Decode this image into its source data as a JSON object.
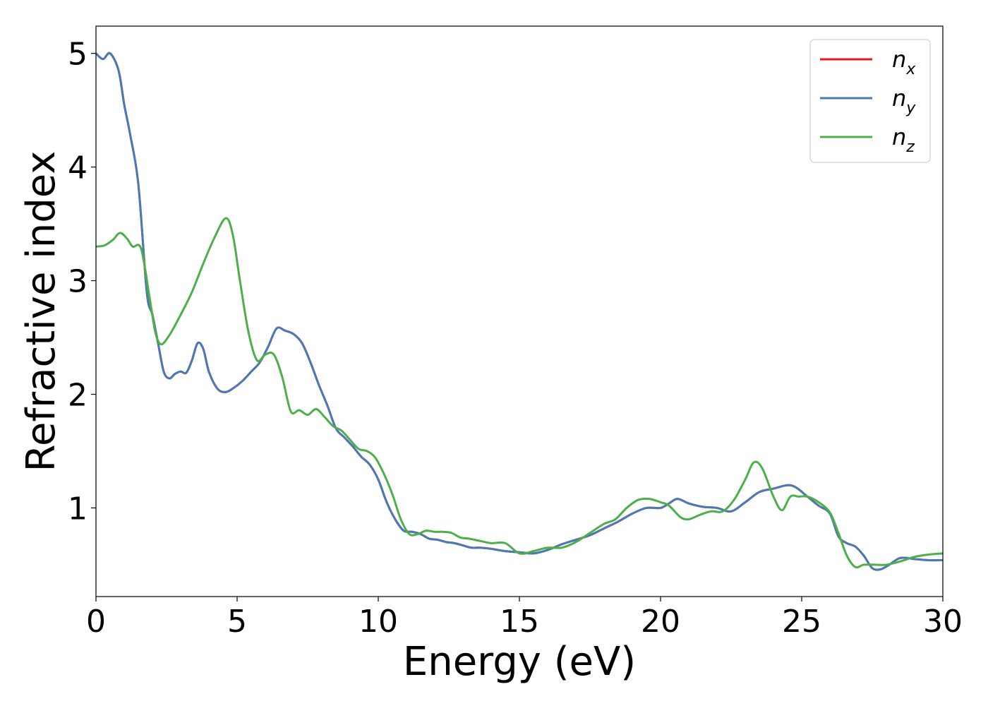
{
  "chart_data": {
    "type": "line",
    "title": "",
    "xlabel": "Energy (eV)",
    "ylabel": "Refractive index",
    "xlim": [
      0,
      30
    ],
    "ylim": [
      0.22,
      5.24
    ],
    "xticks": [
      0,
      5,
      10,
      15,
      20,
      25,
      30
    ],
    "xtick_labels": [
      "0",
      "5",
      "10",
      "15",
      "20",
      "25",
      "30"
    ],
    "yticks": [
      1,
      2,
      3,
      4,
      5
    ],
    "ytick_labels": [
      "1",
      "2",
      "3",
      "4",
      "5"
    ],
    "grid": false,
    "legend_position": "top-right",
    "series": [
      {
        "name": "n_x",
        "legend_base": "n",
        "legend_sub": "x",
        "color": "#e41a1c",
        "x": [
          0,
          0.25,
          0.5,
          0.8,
          1.0,
          1.2,
          1.5,
          1.8,
          2.0,
          2.2,
          2.4,
          2.6,
          2.8,
          3.0,
          3.2,
          3.4,
          3.6,
          3.8,
          4.0,
          4.3,
          4.6,
          4.9,
          5.2,
          5.5,
          5.8,
          6.1,
          6.4,
          6.7,
          7.0,
          7.3,
          7.6,
          7.9,
          8.2,
          8.5,
          8.8,
          9.1,
          9.4,
          9.7,
          10.0,
          10.3,
          10.6,
          10.9,
          11.2,
          11.5,
          11.8,
          12.1,
          12.4,
          12.7,
          13.0,
          13.3,
          13.6,
          14.0,
          14.5,
          15.0,
          15.5,
          16.0,
          16.5,
          17.0,
          17.5,
          18.0,
          18.5,
          19.0,
          19.5,
          20.0,
          20.3,
          20.6,
          21.0,
          21.5,
          22.0,
          22.5,
          23.0,
          23.5,
          24.0,
          24.5,
          24.8,
          25.2,
          25.6,
          26.0,
          26.3,
          26.6,
          26.9,
          27.2,
          27.5,
          27.8,
          28.1,
          28.5,
          29.0,
          29.5,
          30.0
        ],
        "y": [
          5.0,
          4.95,
          5.0,
          4.85,
          4.55,
          4.3,
          3.85,
          2.9,
          2.7,
          2.45,
          2.2,
          2.14,
          2.18,
          2.2,
          2.19,
          2.3,
          2.45,
          2.4,
          2.2,
          2.05,
          2.02,
          2.06,
          2.12,
          2.2,
          2.28,
          2.42,
          2.58,
          2.56,
          2.53,
          2.45,
          2.28,
          2.08,
          1.9,
          1.7,
          1.62,
          1.54,
          1.45,
          1.38,
          1.25,
          1.05,
          0.9,
          0.8,
          0.79,
          0.77,
          0.73,
          0.72,
          0.7,
          0.69,
          0.67,
          0.65,
          0.65,
          0.64,
          0.62,
          0.61,
          0.6,
          0.63,
          0.68,
          0.72,
          0.76,
          0.82,
          0.88,
          0.95,
          1.0,
          1.0,
          1.04,
          1.08,
          1.04,
          1.01,
          1.0,
          0.97,
          1.05,
          1.14,
          1.17,
          1.2,
          1.18,
          1.1,
          1.02,
          0.95,
          0.75,
          0.69,
          0.66,
          0.58,
          0.47,
          0.46,
          0.5,
          0.56,
          0.55,
          0.54,
          0.54
        ]
      },
      {
        "name": "n_y",
        "legend_base": "n",
        "legend_sub": "y",
        "color": "#4a7ab5",
        "x": [
          0,
          0.25,
          0.5,
          0.8,
          1.0,
          1.2,
          1.5,
          1.8,
          2.0,
          2.2,
          2.4,
          2.6,
          2.8,
          3.0,
          3.2,
          3.4,
          3.6,
          3.8,
          4.0,
          4.3,
          4.6,
          4.9,
          5.2,
          5.5,
          5.8,
          6.1,
          6.4,
          6.7,
          7.0,
          7.3,
          7.6,
          7.9,
          8.2,
          8.5,
          8.8,
          9.1,
          9.4,
          9.7,
          10.0,
          10.3,
          10.6,
          10.9,
          11.2,
          11.5,
          11.8,
          12.1,
          12.4,
          12.7,
          13.0,
          13.3,
          13.6,
          14.0,
          14.5,
          15.0,
          15.5,
          16.0,
          16.5,
          17.0,
          17.5,
          18.0,
          18.5,
          19.0,
          19.5,
          20.0,
          20.3,
          20.6,
          21.0,
          21.5,
          22.0,
          22.5,
          23.0,
          23.5,
          24.0,
          24.5,
          24.8,
          25.2,
          25.6,
          26.0,
          26.3,
          26.6,
          26.9,
          27.2,
          27.5,
          27.8,
          28.1,
          28.5,
          29.0,
          29.5,
          30.0
        ],
        "y": [
          5.0,
          4.95,
          5.0,
          4.85,
          4.55,
          4.3,
          3.85,
          2.9,
          2.7,
          2.45,
          2.2,
          2.14,
          2.18,
          2.2,
          2.19,
          2.3,
          2.45,
          2.4,
          2.2,
          2.05,
          2.02,
          2.06,
          2.12,
          2.2,
          2.28,
          2.42,
          2.58,
          2.56,
          2.53,
          2.45,
          2.28,
          2.08,
          1.9,
          1.7,
          1.62,
          1.54,
          1.45,
          1.38,
          1.25,
          1.05,
          0.9,
          0.8,
          0.79,
          0.77,
          0.73,
          0.72,
          0.7,
          0.69,
          0.67,
          0.65,
          0.65,
          0.64,
          0.62,
          0.61,
          0.6,
          0.63,
          0.68,
          0.72,
          0.76,
          0.82,
          0.88,
          0.95,
          1.0,
          1.0,
          1.04,
          1.08,
          1.04,
          1.01,
          1.0,
          0.97,
          1.05,
          1.14,
          1.17,
          1.2,
          1.18,
          1.1,
          1.02,
          0.95,
          0.75,
          0.69,
          0.66,
          0.58,
          0.47,
          0.46,
          0.5,
          0.56,
          0.55,
          0.54,
          0.54
        ]
      },
      {
        "name": "n_z",
        "legend_base": "n",
        "legend_sub": "z",
        "color": "#4daf4a",
        "x": [
          0,
          0.3,
          0.6,
          0.85,
          1.1,
          1.3,
          1.6,
          1.9,
          2.1,
          2.3,
          2.6,
          3.0,
          3.4,
          3.8,
          4.2,
          4.6,
          4.85,
          5.1,
          5.4,
          5.7,
          6.0,
          6.3,
          6.6,
          6.9,
          7.2,
          7.5,
          7.8,
          8.1,
          8.4,
          8.7,
          9.0,
          9.3,
          9.6,
          9.9,
          10.2,
          10.5,
          10.8,
          11.1,
          11.4,
          11.7,
          12.0,
          12.3,
          12.6,
          12.9,
          13.2,
          13.6,
          14.0,
          14.5,
          15.0,
          15.5,
          16.0,
          16.5,
          17.0,
          17.5,
          18.0,
          18.4,
          18.8,
          19.2,
          19.6,
          20.0,
          20.3,
          20.7,
          21.0,
          21.4,
          21.8,
          22.2,
          22.6,
          23.0,
          23.3,
          23.6,
          24.0,
          24.3,
          24.6,
          24.9,
          25.2,
          25.6,
          26.0,
          26.3,
          26.6,
          26.9,
          27.2,
          27.6,
          28.0,
          28.5,
          29.0,
          29.5,
          30.0
        ],
        "y": [
          3.3,
          3.31,
          3.36,
          3.42,
          3.37,
          3.3,
          3.28,
          2.85,
          2.55,
          2.44,
          2.52,
          2.7,
          2.9,
          3.15,
          3.38,
          3.55,
          3.4,
          3.0,
          2.55,
          2.3,
          2.35,
          2.35,
          2.15,
          1.85,
          1.86,
          1.82,
          1.87,
          1.8,
          1.72,
          1.68,
          1.6,
          1.52,
          1.5,
          1.44,
          1.3,
          1.12,
          0.9,
          0.77,
          0.77,
          0.8,
          0.79,
          0.79,
          0.78,
          0.74,
          0.73,
          0.71,
          0.69,
          0.69,
          0.6,
          0.62,
          0.65,
          0.65,
          0.7,
          0.78,
          0.86,
          0.9,
          1.0,
          1.07,
          1.08,
          1.05,
          1.02,
          0.92,
          0.9,
          0.94,
          0.97,
          0.97,
          1.07,
          1.25,
          1.4,
          1.35,
          1.1,
          0.98,
          1.1,
          1.1,
          1.1,
          1.05,
          0.96,
          0.78,
          0.58,
          0.48,
          0.5,
          0.5,
          0.5,
          0.53,
          0.57,
          0.59,
          0.6
        ]
      }
    ]
  }
}
